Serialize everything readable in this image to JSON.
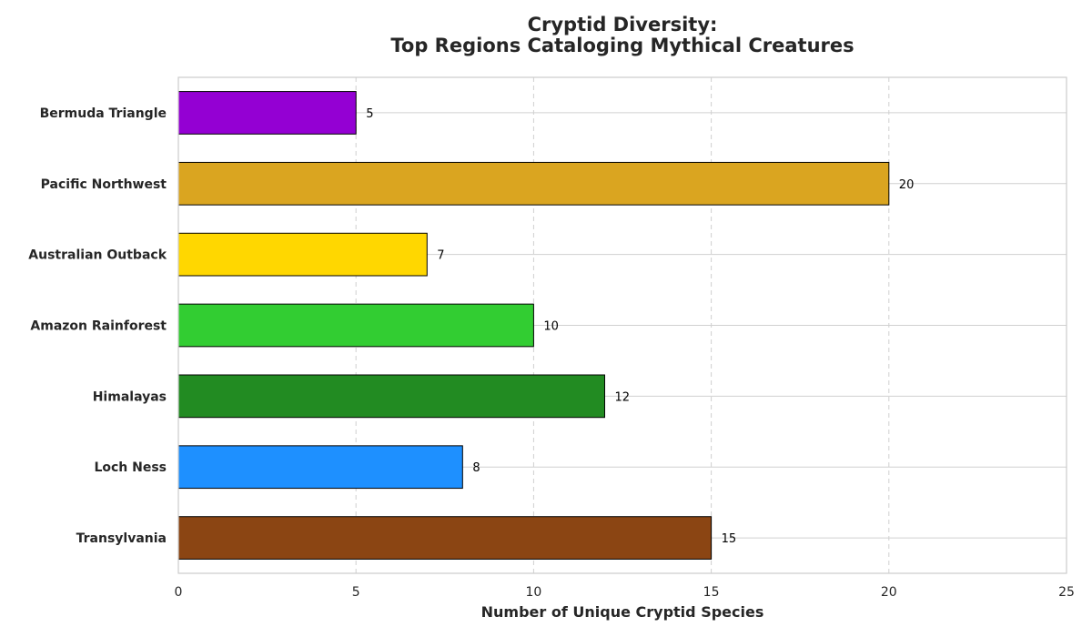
{
  "chart_data": {
    "type": "bar",
    "orientation": "horizontal",
    "title_line1": "Cryptid Diversity:",
    "title_line2": "Top Regions Cataloging Mythical Creatures",
    "xlabel": "Number of Unique Cryptid Species",
    "ylabel": "",
    "xlim": [
      0,
      25
    ],
    "xticks": [
      "0",
      "5",
      "10",
      "15",
      "20",
      "25"
    ],
    "categories": [
      "Transylvania",
      "Loch Ness",
      "Himalayas",
      "Amazon Rainforest",
      "Australian Outback",
      "Pacific Northwest",
      "Bermuda Triangle"
    ],
    "values": [
      15,
      8,
      12,
      10,
      7,
      20,
      5
    ],
    "value_labels": [
      "15",
      "8",
      "12",
      "10",
      "7",
      "20",
      "5"
    ],
    "colors": [
      "#8B4513",
      "#1E90FF",
      "#228B22",
      "#32CD32",
      "#FFD700",
      "#DAA520",
      "#9400D3"
    ],
    "grid": {
      "x_major": "dashed",
      "y_major": "solid"
    },
    "legend": "none"
  }
}
